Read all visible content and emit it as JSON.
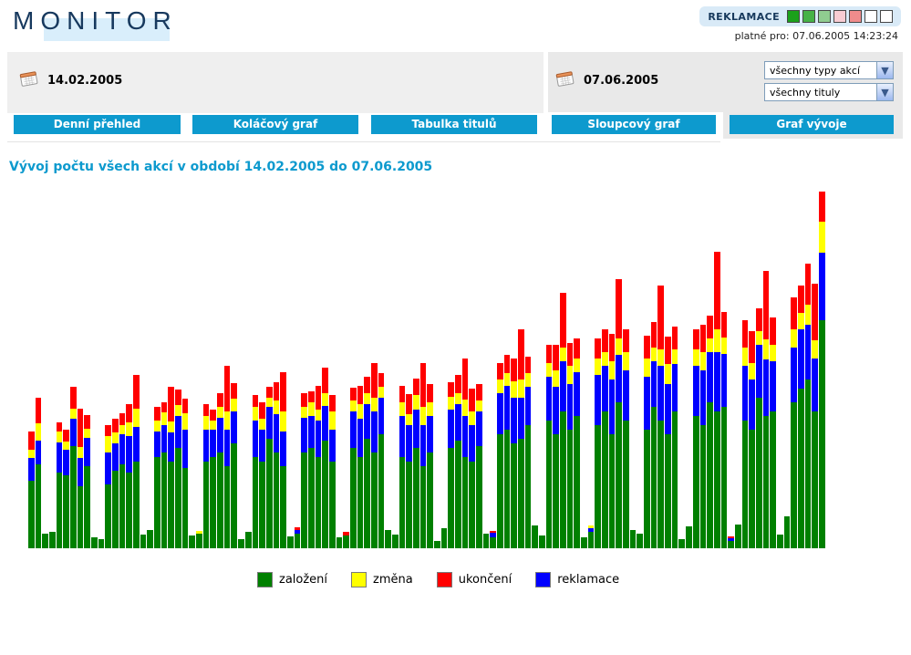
{
  "header": {
    "logo": "MONITOR",
    "badge_label": "REKLAMACE",
    "badge_squares": [
      "#1ba11b",
      "#46b246",
      "#90cd90",
      "#f8ccd3",
      "#f08c8c",
      "#ffffff",
      "#ffffff"
    ],
    "valid_for": "platné pro: 07.06.2005 14:23:24"
  },
  "filters": {
    "date_from": "14.02.2005",
    "date_to": "07.06.2005",
    "action_type_value": "všechny typy akcí",
    "title_value": "všechny tituly"
  },
  "tabs": [
    {
      "label": "Denní přehled",
      "active": false
    },
    {
      "label": "Koláčový graf",
      "active": false
    },
    {
      "label": "Tabulka titulů",
      "active": false
    },
    {
      "label": "Sloupcový graf",
      "active": false
    },
    {
      "label": "Graf vývoje",
      "active": true
    }
  ],
  "main": {
    "title": "Vývoj počtu všech akcí v období 14.02.2005 do 07.06.2005"
  },
  "chart_data": {
    "type": "bar",
    "stacked": true,
    "title": "Vývoj počtu všech akcí v období 14.02.2005 do 07.06.2005",
    "xlabel": "days from 14.02.2005 to 07.06.2005 (no tick labels shown)",
    "ylabel": "count of actions (no numeric axis shown)",
    "grid": false,
    "legend_position": "bottom",
    "bar_segment_order": [
      "založení",
      "reklamace",
      "změna",
      "ukončení"
    ],
    "segment_colors": [
      "#008000",
      "#0000ff",
      "#ffff00",
      "#ff0000"
    ],
    "colors": {
      "založení": "#008000",
      "změna": "#ffff00",
      "ukončení": "#ff0000",
      "reklamace": "#0000ff"
    },
    "legend": [
      {
        "label": "založení",
        "color": "#008000"
      },
      {
        "label": "změna",
        "color": "#ffff00"
      },
      {
        "label": "ukončení",
        "color": "#ff0000"
      },
      {
        "label": "reklamace",
        "color": "#0000ff"
      }
    ],
    "values_unit": "pixel heights (chart shows no numeric axis; weekly pattern: 5 workday stacked bars + 2 small weekend bars)",
    "bars": [
      [
        74,
        25,
        9,
        20
      ],
      [
        92,
        26,
        19,
        28
      ],
      [
        16,
        0,
        0,
        0
      ],
      [
        18,
        0,
        0,
        0
      ],
      [
        83,
        33,
        12,
        10
      ],
      [
        80,
        28,
        9,
        13
      ],
      [
        112,
        30,
        11,
        24
      ],
      [
        68,
        31,
        12,
        42
      ],
      [
        90,
        31,
        10,
        15
      ],
      [
        12,
        0,
        0,
        0
      ],
      [
        10,
        0,
        0,
        0
      ],
      [
        70,
        35,
        18,
        12
      ],
      [
        85,
        30,
        12,
        15
      ],
      [
        92,
        33,
        10,
        13
      ],
      [
        83,
        40,
        15,
        20
      ],
      [
        95,
        38,
        20,
        37
      ],
      [
        15,
        0,
        0,
        0
      ],
      [
        20,
        0,
        0,
        0
      ],
      [
        100,
        28,
        12,
        15
      ],
      [
        105,
        30,
        14,
        11
      ],
      [
        95,
        32,
        12,
        38
      ],
      [
        110,
        35,
        12,
        17
      ],
      [
        88,
        42,
        18,
        16
      ],
      [
        14,
        0,
        0,
        0
      ],
      [
        16,
        0,
        3,
        0
      ],
      [
        95,
        35,
        15,
        13
      ],
      [
        100,
        30,
        10,
        12
      ],
      [
        105,
        38,
        12,
        15
      ],
      [
        90,
        40,
        20,
        50
      ],
      [
        115,
        35,
        14,
        17
      ],
      [
        10,
        0,
        0,
        0
      ],
      [
        18,
        0,
        0,
        0
      ],
      [
        100,
        40,
        15,
        13
      ],
      [
        95,
        35,
        12,
        18
      ],
      [
        120,
        35,
        10,
        12
      ],
      [
        105,
        42,
        15,
        20
      ],
      [
        90,
        38,
        22,
        43
      ],
      [
        13,
        0,
        0,
        0
      ],
      [
        16,
        4,
        0,
        3
      ],
      [
        105,
        38,
        12,
        15
      ],
      [
        110,
        35,
        15,
        12
      ],
      [
        100,
        40,
        12,
        26
      ],
      [
        118,
        38,
        14,
        28
      ],
      [
        95,
        35,
        20,
        18
      ],
      [
        12,
        0,
        0,
        0
      ],
      [
        14,
        0,
        0,
        4
      ],
      [
        110,
        40,
        12,
        14
      ],
      [
        100,
        42,
        16,
        20
      ],
      [
        120,
        38,
        12,
        18
      ],
      [
        105,
        45,
        15,
        38
      ],
      [
        125,
        40,
        12,
        15
      ],
      [
        20,
        0,
        0,
        0
      ],
      [
        15,
        0,
        0,
        0
      ],
      [
        100,
        45,
        15,
        18
      ],
      [
        95,
        40,
        12,
        22
      ],
      [
        110,
        42,
        16,
        18
      ],
      [
        90,
        45,
        20,
        48
      ],
      [
        105,
        40,
        15,
        20
      ],
      [
        8,
        0,
        0,
        0
      ],
      [
        22,
        0,
        0,
        0
      ],
      [
        110,
        42,
        14,
        16
      ],
      [
        118,
        40,
        12,
        20
      ],
      [
        100,
        45,
        18,
        45
      ],
      [
        95,
        40,
        15,
        25
      ],
      [
        112,
        38,
        12,
        18
      ],
      [
        16,
        0,
        0,
        0
      ],
      [
        12,
        5,
        0,
        2
      ],
      [
        125,
        45,
        15,
        18
      ],
      [
        130,
        48,
        14,
        20
      ],
      [
        115,
        50,
        18,
        25
      ],
      [
        120,
        45,
        20,
        55
      ],
      [
        135,
        42,
        15,
        18
      ],
      [
        25,
        0,
        0,
        0
      ],
      [
        14,
        0,
        0,
        0
      ],
      [
        140,
        48,
        15,
        20
      ],
      [
        125,
        52,
        18,
        28
      ],
      [
        150,
        55,
        15,
        60
      ],
      [
        130,
        50,
        20,
        25
      ],
      [
        145,
        48,
        15,
        22
      ],
      [
        12,
        0,
        0,
        0
      ],
      [
        18,
        4,
        3,
        0
      ],
      [
        135,
        55,
        18,
        22
      ],
      [
        150,
        50,
        15,
        25
      ],
      [
        125,
        60,
        20,
        30
      ],
      [
        160,
        52,
        18,
        65
      ],
      [
        140,
        55,
        20,
        25
      ],
      [
        20,
        0,
        0,
        0
      ],
      [
        16,
        0,
        0,
        0
      ],
      [
        130,
        58,
        20,
        25
      ],
      [
        155,
        50,
        15,
        28
      ],
      [
        140,
        60,
        18,
        70
      ],
      [
        125,
        55,
        22,
        30
      ],
      [
        150,
        52,
        16,
        25
      ],
      [
        10,
        0,
        0,
        0
      ],
      [
        24,
        0,
        0,
        0
      ],
      [
        145,
        55,
        18,
        22
      ],
      [
        135,
        60,
        20,
        30
      ],
      [
        160,
        55,
        15,
        25
      ],
      [
        150,
        65,
        25,
        85
      ],
      [
        155,
        58,
        18,
        28
      ],
      [
        8,
        3,
        0,
        2
      ],
      [
        26,
        0,
        0,
        0
      ],
      [
        140,
        60,
        20,
        30
      ],
      [
        130,
        55,
        18,
        35
      ],
      [
        165,
        58,
        15,
        25
      ],
      [
        145,
        62,
        22,
        75
      ],
      [
        150,
        55,
        18,
        30
      ],
      [
        15,
        0,
        0,
        0
      ],
      [
        35,
        0,
        0,
        0
      ],
      [
        160,
        60,
        20,
        35
      ],
      [
        175,
        65,
        18,
        30
      ],
      [
        185,
        60,
        22,
        45
      ],
      [
        150,
        58,
        20,
        62
      ],
      [
        250,
        74,
        34,
        33
      ]
    ]
  }
}
